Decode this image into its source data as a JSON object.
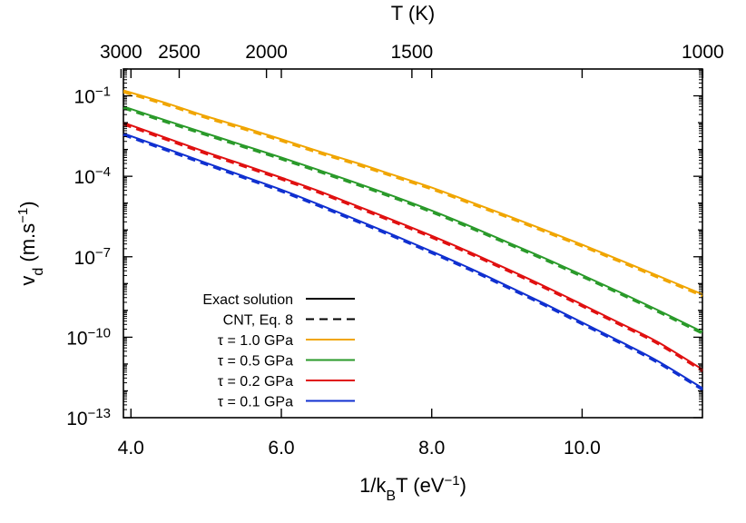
{
  "chart_data": {
    "type": "line",
    "xlabel_base": "1/k",
    "xlabel_sub": "B",
    "xlabel_mid": "T (eV",
    "xlabel_sup": "−1",
    "xlabel_end": ")",
    "ylabel_base": "v",
    "ylabel_sub": "d",
    "ylabel_mid": " (m.s",
    "ylabel_sup": "−1",
    "ylabel_end": ")",
    "top_xlabel": "T (K)",
    "xlim": [
      3.9,
      11.6
    ],
    "ylim_log10": [
      -13,
      0
    ],
    "y_scale": "log",
    "grid": false,
    "legend_position": "bottom-left",
    "x_ticks": [
      {
        "value": 4.0,
        "label": "4.0"
      },
      {
        "value": 6.0,
        "label": "6.0"
      },
      {
        "value": 8.0,
        "label": "8.0"
      },
      {
        "value": 10.0,
        "label": "10.0"
      }
    ],
    "y_ticks": [
      {
        "exp": -1,
        "base": "10",
        "sup": "−1"
      },
      {
        "exp": -4,
        "base": "10",
        "sup": "−4"
      },
      {
        "exp": -7,
        "base": "10",
        "sup": "−7"
      },
      {
        "exp": -10,
        "base": "10",
        "sup": "−10"
      },
      {
        "exp": -13,
        "base": "10",
        "sup": "−13"
      }
    ],
    "top_ticks": [
      {
        "value": 3000,
        "label": "3000"
      },
      {
        "value": 2500,
        "label": "2500"
      },
      {
        "value": 2000,
        "label": "2000"
      },
      {
        "value": 1500,
        "label": "1500"
      },
      {
        "value": 1000,
        "label": "1000"
      }
    ],
    "legend_style_entries": [
      {
        "label": "Exact solution",
        "color": "#000000",
        "dashed": false
      },
      {
        "label": "CNT, Eq. 8",
        "color": "#000000",
        "dashed": true
      }
    ],
    "series": [
      {
        "name": "τ = 1.0 GPa",
        "color": "#f0a500",
        "x": [
          3.9,
          4.5,
          5.0,
          5.5,
          6.0,
          6.5,
          7.0,
          7.5,
          8.0,
          8.5,
          9.0,
          9.5,
          10.0,
          10.5,
          11.0,
          11.6
        ],
        "log10_y": [
          -0.8,
          -1.3,
          -1.76,
          -2.18,
          -2.62,
          -3.07,
          -3.5,
          -3.96,
          -4.42,
          -4.94,
          -5.46,
          -6.0,
          -6.55,
          -7.12,
          -7.7,
          -8.4
        ]
      },
      {
        "name": "τ = 0.5 GPa",
        "color": "#2a9a2a",
        "x": [
          3.9,
          4.5,
          5.0,
          5.5,
          6.0,
          6.5,
          7.0,
          7.5,
          8.0,
          8.5,
          9.0,
          9.5,
          10.0,
          10.5,
          11.0,
          11.6
        ],
        "log10_y": [
          -1.4,
          -1.95,
          -2.4,
          -2.85,
          -3.3,
          -3.77,
          -4.25,
          -4.75,
          -5.28,
          -5.85,
          -6.45,
          -7.05,
          -7.68,
          -8.32,
          -8.98,
          -9.8
        ]
      },
      {
        "name": "τ = 0.2 GPa",
        "color": "#e01010",
        "x": [
          3.9,
          4.5,
          5.0,
          5.5,
          6.0,
          6.5,
          7.0,
          7.5,
          8.0,
          8.5,
          9.0,
          9.5,
          10.0,
          10.5,
          11.0,
          11.6
        ],
        "log10_y": [
          -2.0,
          -2.6,
          -3.1,
          -3.57,
          -4.05,
          -4.55,
          -5.1,
          -5.65,
          -6.22,
          -6.82,
          -7.45,
          -8.1,
          -8.78,
          -9.47,
          -10.17,
          -11.2
        ]
      },
      {
        "name": "τ = 0.1 GPa",
        "color": "#1030d0",
        "x": [
          3.9,
          4.5,
          5.0,
          5.5,
          6.0,
          6.5,
          7.0,
          7.5,
          8.0,
          8.5,
          9.0,
          9.5,
          10.0,
          10.5,
          11.0,
          11.6
        ],
        "log10_y": [
          -2.4,
          -3.0,
          -3.5,
          -4.0,
          -4.5,
          -5.05,
          -5.62,
          -6.2,
          -6.8,
          -7.42,
          -8.08,
          -8.75,
          -9.45,
          -10.15,
          -10.88,
          -11.9
        ]
      }
    ]
  }
}
